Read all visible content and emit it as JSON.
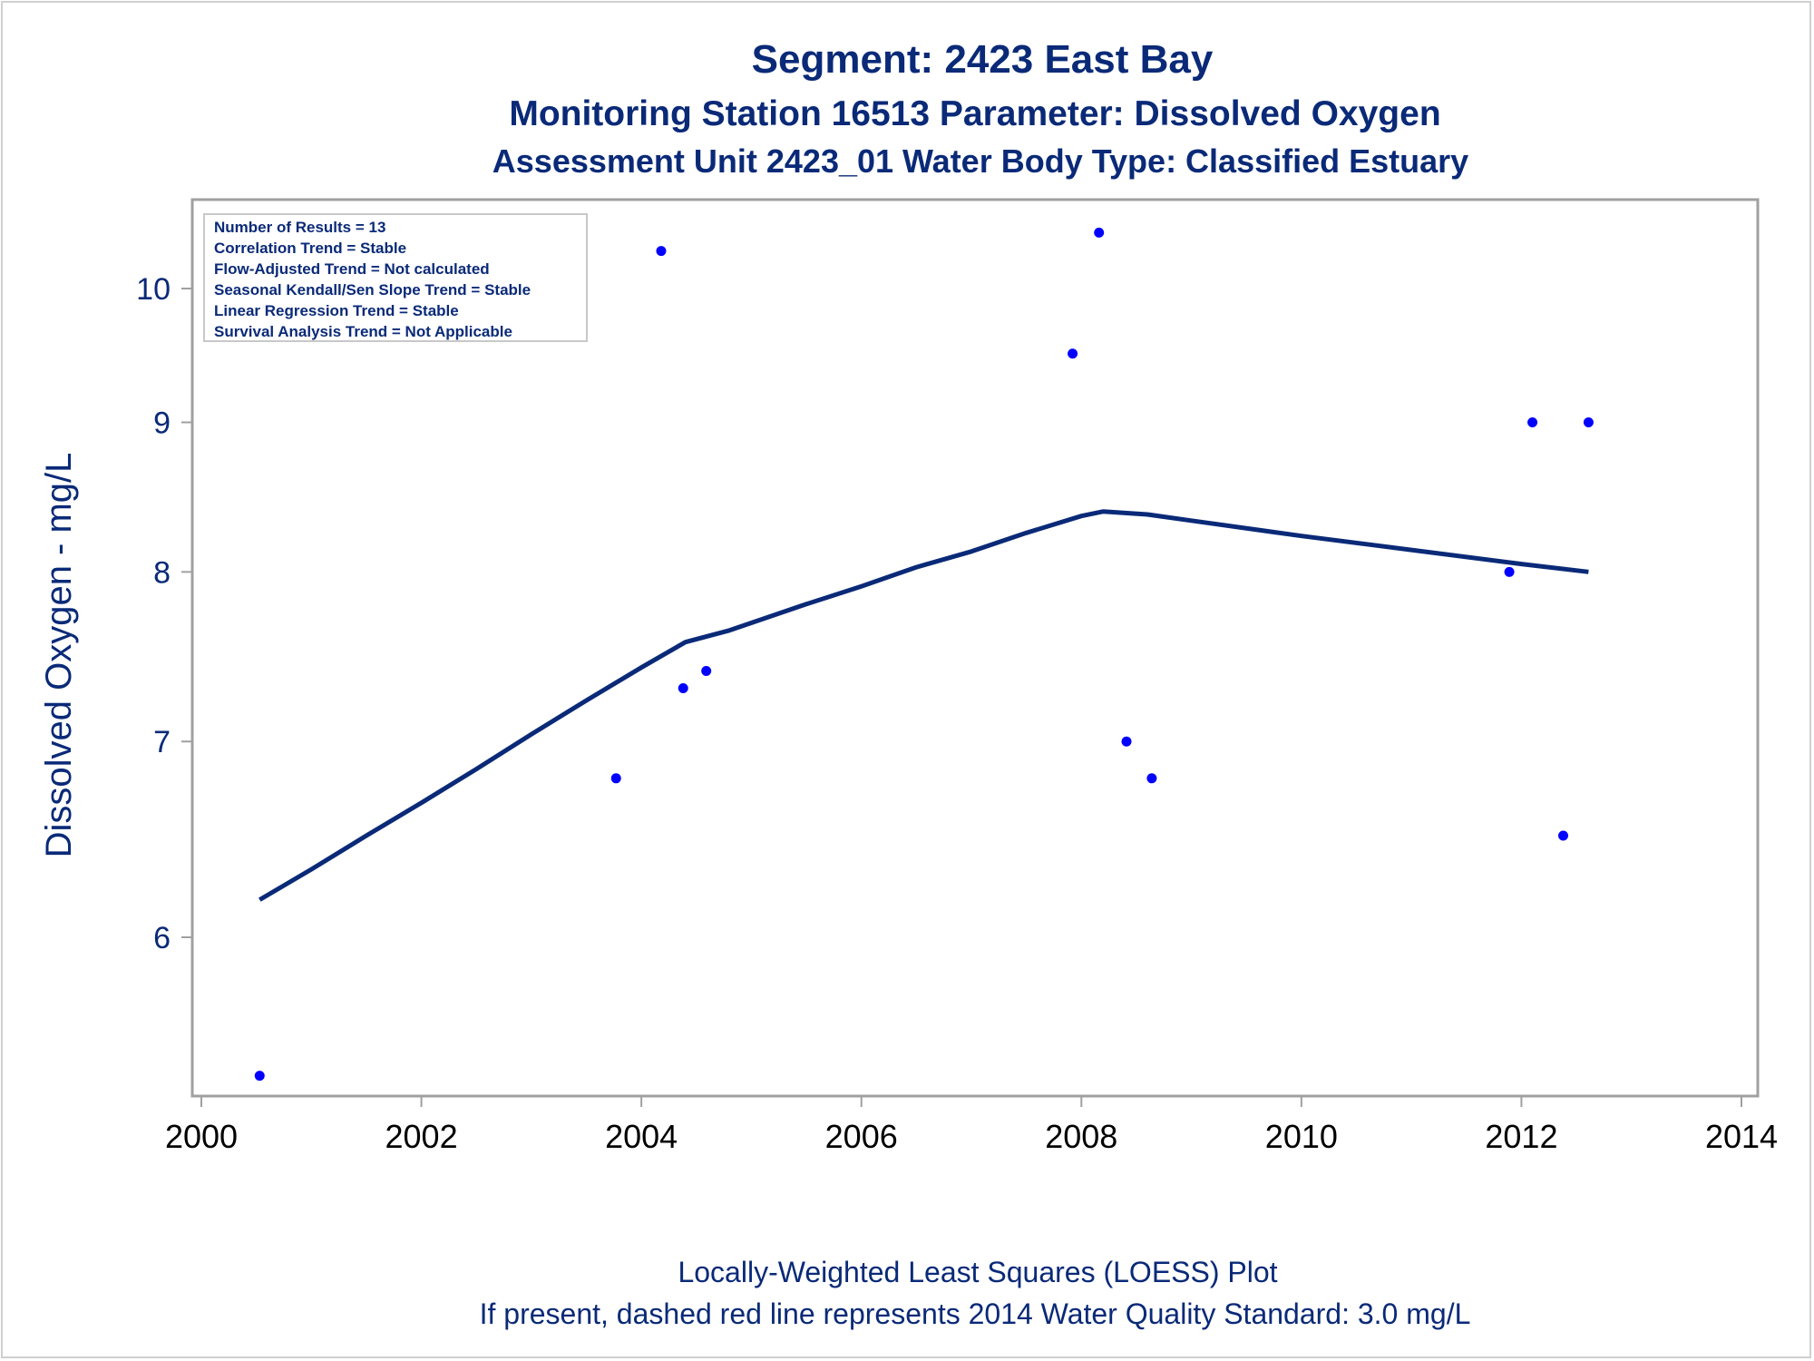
{
  "chart_data": {
    "type": "scatter",
    "title": "Segment: 2423  East Bay",
    "subtitle1": "Monitoring Station 16513 Parameter: Dissolved Oxygen",
    "subtitle2": "Assessment Unit 2423_01   Water Body Type: Classified Estuary",
    "ylabel": "Dissolved Oxygen - mg/L",
    "xlabel": "",
    "y_scale": "log",
    "xlim": [
      2000,
      2014
    ],
    "ylim": [
      5.3,
      10.6
    ],
    "x_ticks": [
      "2000",
      "2002",
      "2004",
      "2006",
      "2008",
      "2010",
      "2012",
      "2014"
    ],
    "y_ticks": [
      "6",
      "7",
      "8",
      "9",
      "10"
    ],
    "stats_box": [
      "Number of Results = 13",
      "Correlation Trend = Stable",
      "Flow-Adjusted Trend = Not calculated",
      "Seasonal Kendall/Sen Slope Trend = Stable",
      "Linear Regression Trend = Stable",
      "Survival Analysis Trend = Not Applicable"
    ],
    "series": [
      {
        "kind": "points",
        "x": [
          2000.53,
          2003.77,
          2004.18,
          2004.38,
          2004.59,
          2007.92,
          2008.16,
          2008.41,
          2008.64,
          2011.89,
          2012.1,
          2012.38,
          2012.61
        ],
        "y": [
          5.38,
          6.8,
          10.3,
          7.3,
          7.4,
          9.5,
          10.45,
          7.0,
          6.8,
          8.0,
          9.0,
          6.5,
          9.0
        ]
      },
      {
        "kind": "loess",
        "x": [
          2000.53,
          2001.0,
          2001.5,
          2002.0,
          2002.5,
          2003.0,
          2003.5,
          2004.0,
          2004.4,
          2004.8,
          2005.5,
          2006.0,
          2006.5,
          2007.0,
          2007.5,
          2008.0,
          2008.2,
          2008.6,
          2009.0,
          2010.0,
          2011.0,
          2012.0,
          2012.61
        ],
        "y": [
          6.18,
          6.33,
          6.5,
          6.67,
          6.85,
          7.04,
          7.23,
          7.42,
          7.57,
          7.64,
          7.8,
          7.91,
          8.03,
          8.13,
          8.25,
          8.36,
          8.39,
          8.37,
          8.33,
          8.23,
          8.14,
          8.05,
          8.0
        ]
      }
    ],
    "footnote1": "Locally-Weighted Least Squares (LOESS) Plot",
    "footnote2": "If present, dashed red line represents 2014 Water Quality Standard: 3.0 mg/L",
    "colors": {
      "points": "#0000ff",
      "line": "#0a2a78",
      "text": "#0a2a78",
      "axis": "#a0a0a0"
    }
  }
}
